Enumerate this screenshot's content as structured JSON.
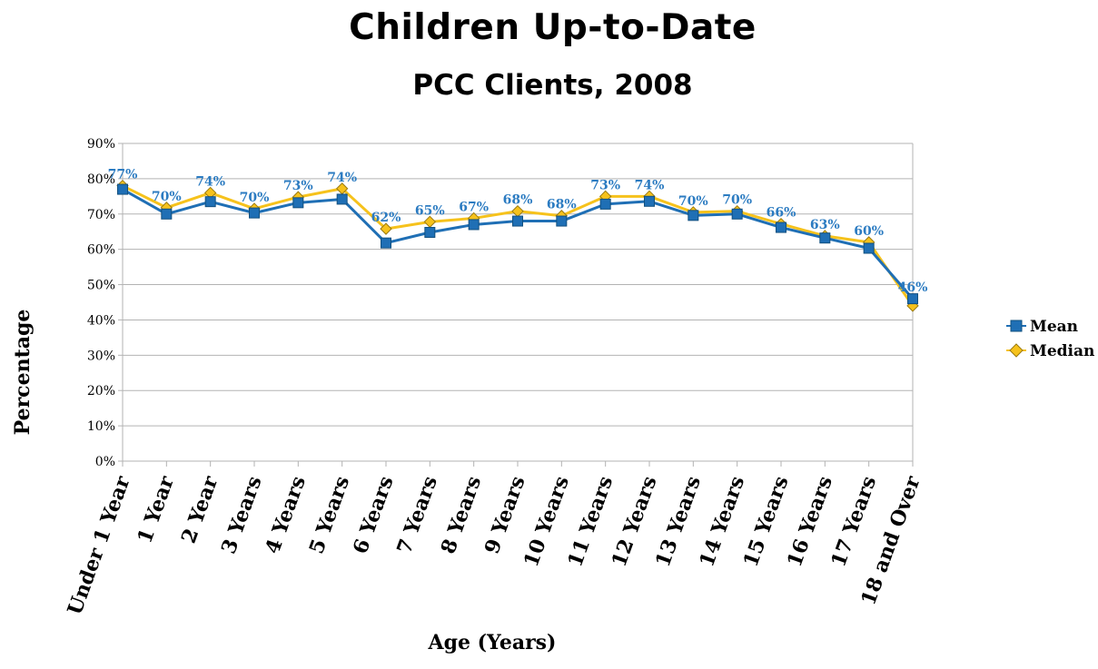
{
  "chart_data": {
    "type": "line",
    "title": "Children Up-to-Date",
    "subtitle": "PCC Clients, 2008",
    "xlabel": "Age (Years)",
    "ylabel": "Percentage",
    "ylim": [
      0,
      90
    ],
    "yticks": [
      "0%",
      "10%",
      "20%",
      "30%",
      "40%",
      "50%",
      "60%",
      "70%",
      "80%",
      "90%"
    ],
    "grid": true,
    "legend_position": "right",
    "categories": [
      "Under 1 Year",
      "1 Year",
      "2 Year",
      "3 Years",
      "4 Years",
      "5 Years",
      "6 Years",
      "7 Years",
      "8 Years",
      "9 Years",
      "10 Years",
      "11 Years",
      "12 Years",
      "13 Years",
      "14 Years",
      "15 Years",
      "16 Years",
      "17 Years",
      "18 and Over"
    ],
    "series": [
      {
        "name": "Mean",
        "color": "#1f6fb5",
        "marker": "square",
        "values": [
          77,
          70,
          73.5,
          70.3,
          73.2,
          74.2,
          61.8,
          64.8,
          67,
          68,
          68,
          72.8,
          73.6,
          69.6,
          70,
          66.2,
          63.2,
          60.3,
          46
        ],
        "data_labels": [
          "77%",
          "70%",
          "74%",
          "70%",
          "73%",
          "74%",
          "62%",
          "65%",
          "67%",
          "68%",
          "68%",
          "73%",
          "74%",
          "70%",
          "70%",
          "66%",
          "63%",
          "60%",
          "46%"
        ]
      },
      {
        "name": "Median",
        "color": "#f6c21c",
        "marker": "diamond",
        "values": [
          78,
          71.8,
          76,
          71.5,
          74.8,
          77.2,
          65.8,
          67.8,
          68.8,
          70.8,
          69.5,
          75,
          75,
          70.5,
          70.8,
          67.2,
          63.8,
          62,
          44
        ]
      }
    ]
  }
}
